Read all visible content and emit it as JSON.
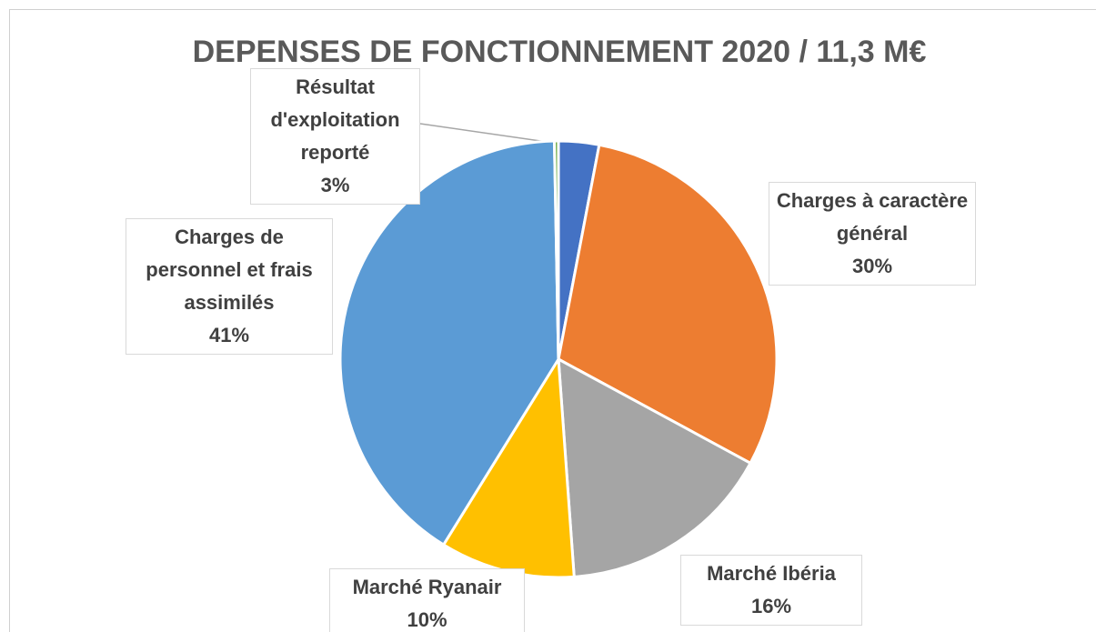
{
  "chart_data": {
    "type": "pie",
    "title": "DEPENSES DE FONCTIONNEMENT 2020 / 11,3 M€",
    "categories": [
      "Résultat d'exploitation reporté",
      "Charges à caractère général",
      "Marché Ibéria",
      "Marché Ryanair",
      "Charges de personnel et frais assimilés",
      null
    ],
    "values": [
      3,
      30,
      16,
      10,
      41,
      0.3
    ],
    "value_labels": [
      "3%",
      "30%",
      "16%",
      "10%",
      "41%",
      null
    ],
    "colors": [
      "#4472c4",
      "#ed7d31",
      "#a5a5a5",
      "#ffc000",
      "#5b9bd5",
      "#70ad47"
    ]
  }
}
